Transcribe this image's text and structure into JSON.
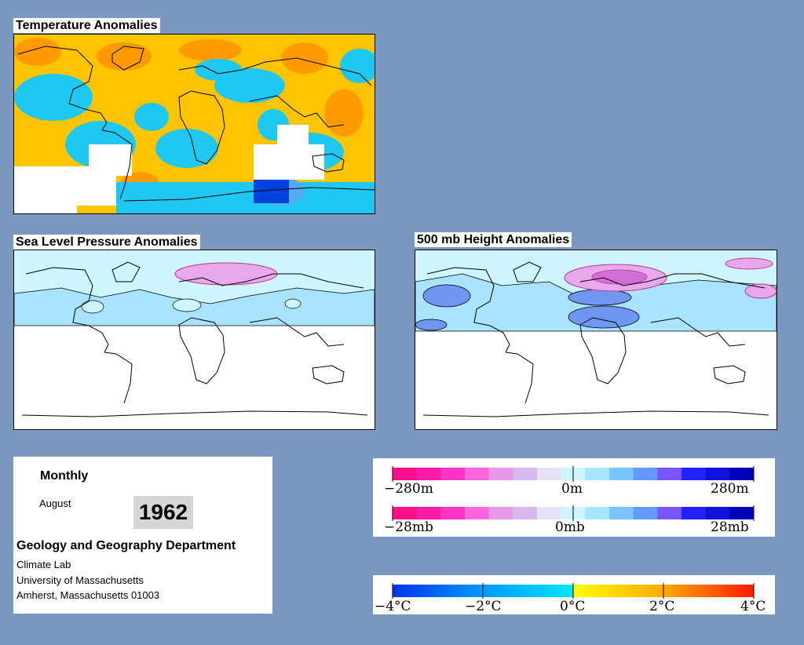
{
  "panels": {
    "temperature": {
      "title": "Temperature Anomalies"
    },
    "slp": {
      "title": "Sea Level Pressure Anomalies"
    },
    "height": {
      "title": "500 mb Height Anomalies"
    }
  },
  "info": {
    "period": "Monthly",
    "month": "August",
    "year": "1962",
    "department": "Geology and Geography Department",
    "lab": "Climate Lab",
    "university": "University of Massachusetts",
    "address": "Amherst, Massachusetts 01003"
  },
  "legends": {
    "height": {
      "labels": [
        "−280m",
        "0m",
        "280m"
      ]
    },
    "pressure": {
      "labels": [
        "−28mb",
        "0mb",
        "28mb"
      ]
    },
    "temperature": {
      "labels": [
        "−4°C",
        "−2°C",
        "0°C",
        "2°C",
        "4°C"
      ]
    }
  },
  "colors": {
    "background": "#7b98c0",
    "pressure_height_scale": [
      "#ff0f8c",
      "#ff1aa8",
      "#ff33c8",
      "#ff66dd",
      "#e89ae8",
      "#d9b8ee",
      "#e6e0f8",
      "#ccf5ff",
      "#a6e6ff",
      "#7ac4ff",
      "#6699ff",
      "#7a55ff",
      "#2222ff",
      "#1111dd",
      "#0000bb"
    ],
    "temperature_scale": [
      "#0033ee",
      "#0088ff",
      "#00d0ff",
      "#ffff00",
      "#ffbb00",
      "#ff7700",
      "#ff2200"
    ]
  }
}
